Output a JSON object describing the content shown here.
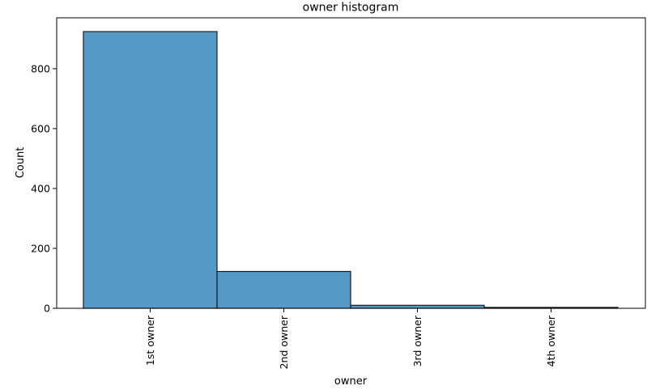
{
  "chart_data": {
    "type": "bar",
    "title": "owner histogram",
    "xlabel": "owner",
    "ylabel": "Count",
    "categories": [
      "1st owner",
      "2nd owner",
      "3rd owner",
      "4th owner"
    ],
    "values": [
      924,
      123,
      10,
      3
    ],
    "ylim": [
      0,
      970
    ],
    "yticks": [
      0,
      200,
      400,
      600,
      800
    ],
    "grid": false,
    "bar_color": "#5499c7",
    "edge_color": "#1c1c1c"
  }
}
